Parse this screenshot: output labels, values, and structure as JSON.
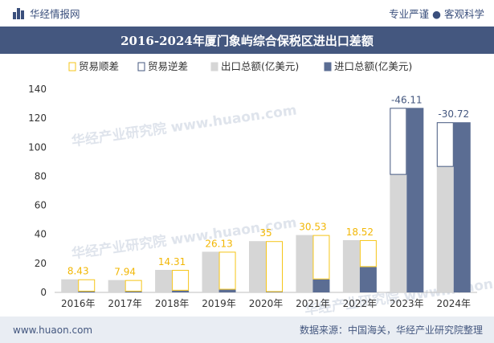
{
  "header": {
    "brand_name": "华经情报网",
    "tagline": "专业严谨 ● 客观科学",
    "logo_icon": "bar-logo-icon"
  },
  "title": "2016-2024年厦门象屿综合保税区进出口差额",
  "footer": {
    "website": "www.huaon.com",
    "source": "数据来源：中国海关，华经产业研究院整理"
  },
  "colors": {
    "header_bar": "#44577f",
    "surplus": "#f5c518",
    "deficit": "#44577f",
    "export": "#d6d6d6",
    "import": "#5b6d93"
  },
  "watermark": "华经产业研究院 www.huaon.com",
  "chart_data": {
    "type": "bar",
    "categories": [
      "2016年",
      "2017年",
      "2018年",
      "2019年",
      "2020年",
      "2021年",
      "2022年",
      "2023年",
      "2024年"
    ],
    "series": [
      {
        "name": "出口总额(亿美元)",
        "values": [
          9.0,
          8.5,
          15.5,
          28.0,
          35.3,
          39.5,
          36.0,
          81.0,
          86.5
        ]
      },
      {
        "name": "进口总额(亿美元)",
        "values": [
          0.6,
          0.6,
          1.2,
          1.9,
          0.3,
          9.0,
          17.5,
          127.1,
          117.2
        ]
      }
    ],
    "balance": [
      {
        "year": "2016年",
        "value": 8.43,
        "label": "8.43",
        "kind": "surplus"
      },
      {
        "year": "2017年",
        "value": 7.94,
        "label": "7.94",
        "kind": "surplus"
      },
      {
        "year": "2018年",
        "value": 14.31,
        "label": "14.31",
        "kind": "surplus"
      },
      {
        "year": "2019年",
        "value": 26.13,
        "label": "26.13",
        "kind": "surplus"
      },
      {
        "year": "2020年",
        "value": 35,
        "label": "35",
        "kind": "surplus"
      },
      {
        "year": "2021年",
        "value": 30.53,
        "label": "30.53",
        "kind": "surplus"
      },
      {
        "year": "2022年",
        "value": 18.52,
        "label": "18.52",
        "kind": "surplus"
      },
      {
        "year": "2023年",
        "value": -46.11,
        "label": "-46.11",
        "kind": "deficit"
      },
      {
        "year": "2024年",
        "value": -30.72,
        "label": "-30.72",
        "kind": "deficit"
      }
    ],
    "legend": [
      "贸易顺差",
      "贸易逆差",
      "出口总额(亿美元)",
      "进口总额(亿美元)"
    ],
    "legend_position": "top",
    "ylim": [
      0,
      140
    ],
    "yticks": [
      0,
      20,
      40,
      60,
      80,
      100,
      120,
      140
    ],
    "grid": false
  }
}
